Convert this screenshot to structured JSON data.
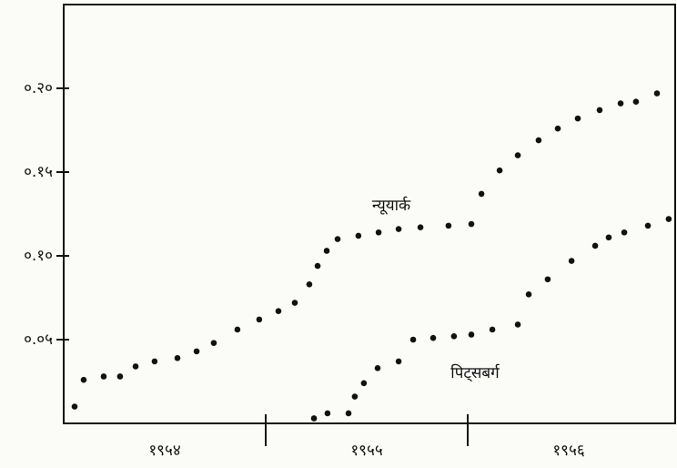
{
  "chart_data": {
    "type": "scatter",
    "xlim": [
      1954,
      1957
    ],
    "xticks": [
      {
        "value": 1954.5,
        "label": "१९५४"
      },
      {
        "value": 1955.5,
        "label": "१९५५"
      },
      {
        "value": 1956.5,
        "label": "१९५६"
      }
    ],
    "ylim": [
      0,
      0.25
    ],
    "yticks": [
      {
        "value": 0.05,
        "label": "०.०५"
      },
      {
        "value": 0.1,
        "label": "०.१०"
      },
      {
        "value": 0.15,
        "label": "०.१५"
      },
      {
        "value": 0.2,
        "label": "०.२०"
      }
    ],
    "series": [
      {
        "name": "न्यूयार्क",
        "color": "#111111",
        "x": [
          1954.054,
          1954.099,
          1954.198,
          1954.279,
          1954.356,
          1954.45,
          1954.563,
          1954.658,
          1954.743,
          1954.86,
          1954.968,
          1955.063,
          1955.144,
          1955.216,
          1955.257,
          1955.302,
          1955.356,
          1955.459,
          1955.559,
          1955.658,
          1955.766,
          1955.905,
          1956.018,
          1956.068,
          1956.158,
          1956.248,
          1956.351,
          1956.446,
          1956.545,
          1956.653,
          1956.757,
          1956.833,
          1956.937
        ],
        "values": [
          0.01,
          0.026,
          0.028,
          0.028,
          0.034,
          0.037,
          0.039,
          0.043,
          0.048,
          0.056,
          0.062,
          0.067,
          0.072,
          0.083,
          0.094,
          0.103,
          0.11,
          0.112,
          0.114,
          0.116,
          0.117,
          0.118,
          0.119,
          0.137,
          0.151,
          0.16,
          0.169,
          0.176,
          0.182,
          0.187,
          0.191,
          0.192,
          0.197
        ]
      },
      {
        "name": "पिट्सबर्ग",
        "color": "#111111",
        "x": [
          1955.239,
          1955.306,
          1955.41,
          1955.441,
          1955.486,
          1955.554,
          1955.658,
          1955.73,
          1955.829,
          1955.932,
          1956.018,
          1956.122,
          1956.248,
          1956.302,
          1956.396,
          1956.514,
          1956.631,
          1956.698,
          1956.775,
          1956.892,
          1956.995
        ],
        "values": [
          0.003,
          0.006,
          0.006,
          0.016,
          0.024,
          0.033,
          0.037,
          0.05,
          0.051,
          0.052,
          0.053,
          0.056,
          0.059,
          0.077,
          0.086,
          0.097,
          0.106,
          0.111,
          0.114,
          0.118,
          0.122
        ]
      }
    ]
  }
}
